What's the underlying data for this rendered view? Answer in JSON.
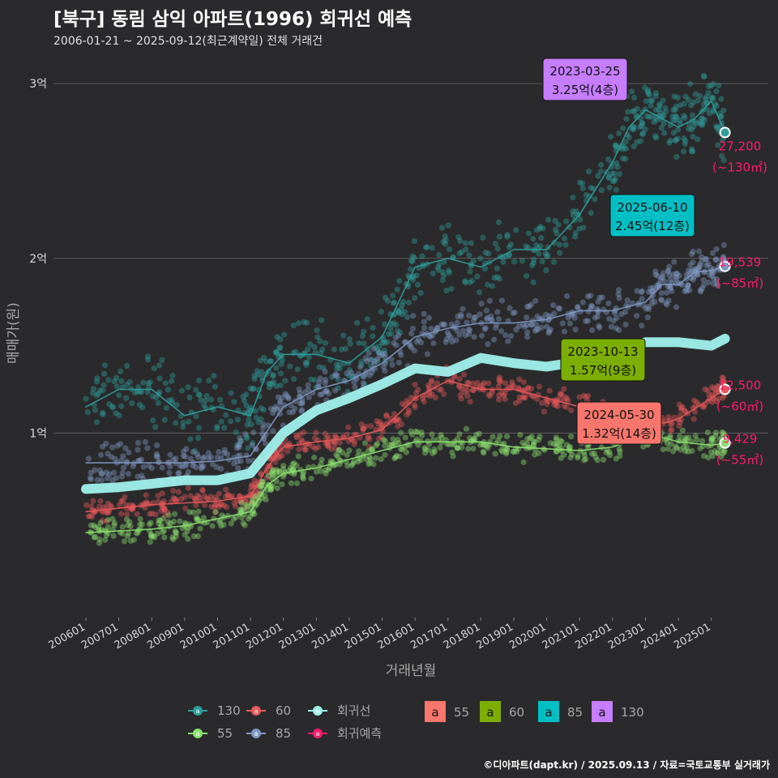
{
  "chart_data": {
    "type": "scatter",
    "title": "[북구] 동림 삼익 아파트(1996) 회귀선 예측",
    "subtitle": "2006-01-21 ~ 2025-09-12(최근계약일) 전체 거래건",
    "xlabel": "거래년월",
    "ylabel": "매매가(원)",
    "y_unit": "만원",
    "ylim": [
      0,
      32000
    ],
    "y_ticks": [
      {
        "value": 10000,
        "label": "1억"
      },
      {
        "value": 20000,
        "label": "2억"
      },
      {
        "value": 30000,
        "label": "3억"
      }
    ],
    "x_range": [
      "2006-01-01",
      "2025-09-30"
    ],
    "x_ticks": [
      "200601",
      "200701",
      "200801",
      "200901",
      "201001",
      "201101",
      "201201",
      "201301",
      "201401",
      "201501",
      "201601",
      "201701",
      "201801",
      "201901",
      "202001",
      "202101",
      "202201",
      "202301",
      "202401",
      "202501"
    ],
    "grid": "horizontal",
    "series": [
      {
        "name": "130",
        "color": "#2f9e9b",
        "x": [
          "2006-01",
          "2007-01",
          "2008-01",
          "2009-01",
          "2010-01",
          "2011-01",
          "2011-07",
          "2012-01",
          "2013-01",
          "2014-01",
          "2015-01",
          "2015-07",
          "2016-01",
          "2017-01",
          "2018-01",
          "2019-01",
          "2020-01",
          "2021-01",
          "2022-01",
          "2022-07",
          "2023-01",
          "2023-07",
          "2024-01",
          "2024-07",
          "2025-01",
          "2025-06"
        ],
        "values": [
          11500,
          12500,
          12500,
          11000,
          11500,
          11000,
          13500,
          14500,
          14500,
          14000,
          15500,
          17500,
          19500,
          20000,
          19500,
          20500,
          20500,
          22500,
          25500,
          27500,
          28500,
          28000,
          27500,
          28000,
          29000,
          27200
        ]
      },
      {
        "name": "85",
        "color": "#8098c4",
        "x": [
          "2006-01",
          "2007-01",
          "2008-01",
          "2009-01",
          "2010-01",
          "2011-01",
          "2012-01",
          "2013-01",
          "2014-01",
          "2015-01",
          "2016-01",
          "2017-01",
          "2018-01",
          "2019-01",
          "2020-01",
          "2021-01",
          "2022-01",
          "2023-01",
          "2023-07",
          "2024-01",
          "2024-07",
          "2025-01",
          "2025-06"
        ],
        "values": [
          8300,
          8300,
          8300,
          8300,
          8400,
          8700,
          11500,
          12500,
          13000,
          14000,
          15500,
          16000,
          16300,
          16300,
          16500,
          17000,
          17000,
          17500,
          18500,
          18500,
          19200,
          19300,
          19539
        ]
      },
      {
        "name": "60",
        "color": "#e8585a",
        "x": [
          "2006-01",
          "2007-01",
          "2008-01",
          "2009-01",
          "2010-01",
          "2011-01",
          "2011-07",
          "2012-01",
          "2013-01",
          "2014-01",
          "2015-01",
          "2016-01",
          "2017-01",
          "2018-01",
          "2019-01",
          "2020-01",
          "2021-01",
          "2022-01",
          "2023-01",
          "2024-01",
          "2025-01",
          "2025-06"
        ],
        "values": [
          5500,
          5700,
          5900,
          6000,
          6100,
          6400,
          8000,
          9200,
          9500,
          9700,
          10200,
          12000,
          13000,
          12500,
          12500,
          12000,
          11500,
          11000,
          10300,
          10800,
          12000,
          12500
        ]
      },
      {
        "name": "55",
        "color": "#8ce06f",
        "x": [
          "2006-01",
          "2007-01",
          "2008-01",
          "2009-01",
          "2010-01",
          "2011-01",
          "2011-07",
          "2012-01",
          "2013-01",
          "2014-01",
          "2015-01",
          "2016-01",
          "2017-01",
          "2018-01",
          "2019-01",
          "2020-01",
          "2021-01",
          "2022-01",
          "2023-01",
          "2024-01",
          "2025-01",
          "2025-06"
        ],
        "values": [
          4300,
          4400,
          4500,
          4700,
          5100,
          5500,
          7000,
          7700,
          8000,
          8500,
          9000,
          9500,
          9500,
          9500,
          9200,
          9100,
          9000,
          9200,
          10000,
          9500,
          9300,
          9429
        ]
      },
      {
        "name": "회귀선",
        "color": "#9ff0ec",
        "x": [
          "2006-01",
          "2007-01",
          "2008-01",
          "2009-01",
          "2010-01",
          "2011-01",
          "2012-01",
          "2013-01",
          "2014-01",
          "2015-01",
          "2016-01",
          "2017-01",
          "2018-01",
          "2019-01",
          "2020-01",
          "2021-01",
          "2022-01",
          "2023-01",
          "2024-01",
          "2025-01",
          "2025-06"
        ],
        "values": [
          6800,
          6900,
          7100,
          7300,
          7300,
          7700,
          10000,
          11300,
          12000,
          12800,
          13700,
          13500,
          14300,
          14000,
          13800,
          14100,
          14500,
          15200,
          15200,
          15000,
          15400
        ]
      },
      {
        "name": "회귀예측",
        "color": "#ff1a6b",
        "x": [],
        "values": []
      }
    ],
    "end_labels": [
      {
        "series": "130",
        "value": "27,200",
        "unit": "(~130㎡)"
      },
      {
        "series": "85",
        "value": "19,539",
        "unit": "(~85㎡)"
      },
      {
        "series": "60",
        "value": "12,500",
        "unit": "(~60㎡)"
      },
      {
        "series": "55",
        "value": "9,429",
        "unit": "(~55㎡)"
      }
    ],
    "annotations": [
      {
        "date": "2023-03-25",
        "text": "3.25억(4층)",
        "group": "130",
        "color": "#c77dff"
      },
      {
        "date": "2025-06-10",
        "text": "2.45억(12층)",
        "group": "85",
        "color": "#00bfc4"
      },
      {
        "date": "2023-10-13",
        "text": "1.57억(9층)",
        "group": "60",
        "color": "#7cae00"
      },
      {
        "date": "2024-05-30",
        "text": "1.32억(14층)",
        "group": "55",
        "color": "#f8766d"
      }
    ],
    "legend": {
      "placement": "bottom",
      "line_items": [
        "130",
        "60",
        "회귀선",
        "55",
        "85",
        "회귀예측"
      ],
      "label_items": [
        {
          "name": "55",
          "color": "#f8766d"
        },
        {
          "name": "60",
          "color": "#7cae00"
        },
        {
          "name": "85",
          "color": "#00bfc4"
        },
        {
          "name": "130",
          "color": "#c77dff"
        }
      ],
      "label_glyph": "a"
    },
    "caption": "©디아파트(dapt.kr) / 2025.09.13 / 자료=국토교통부 실거래가"
  }
}
